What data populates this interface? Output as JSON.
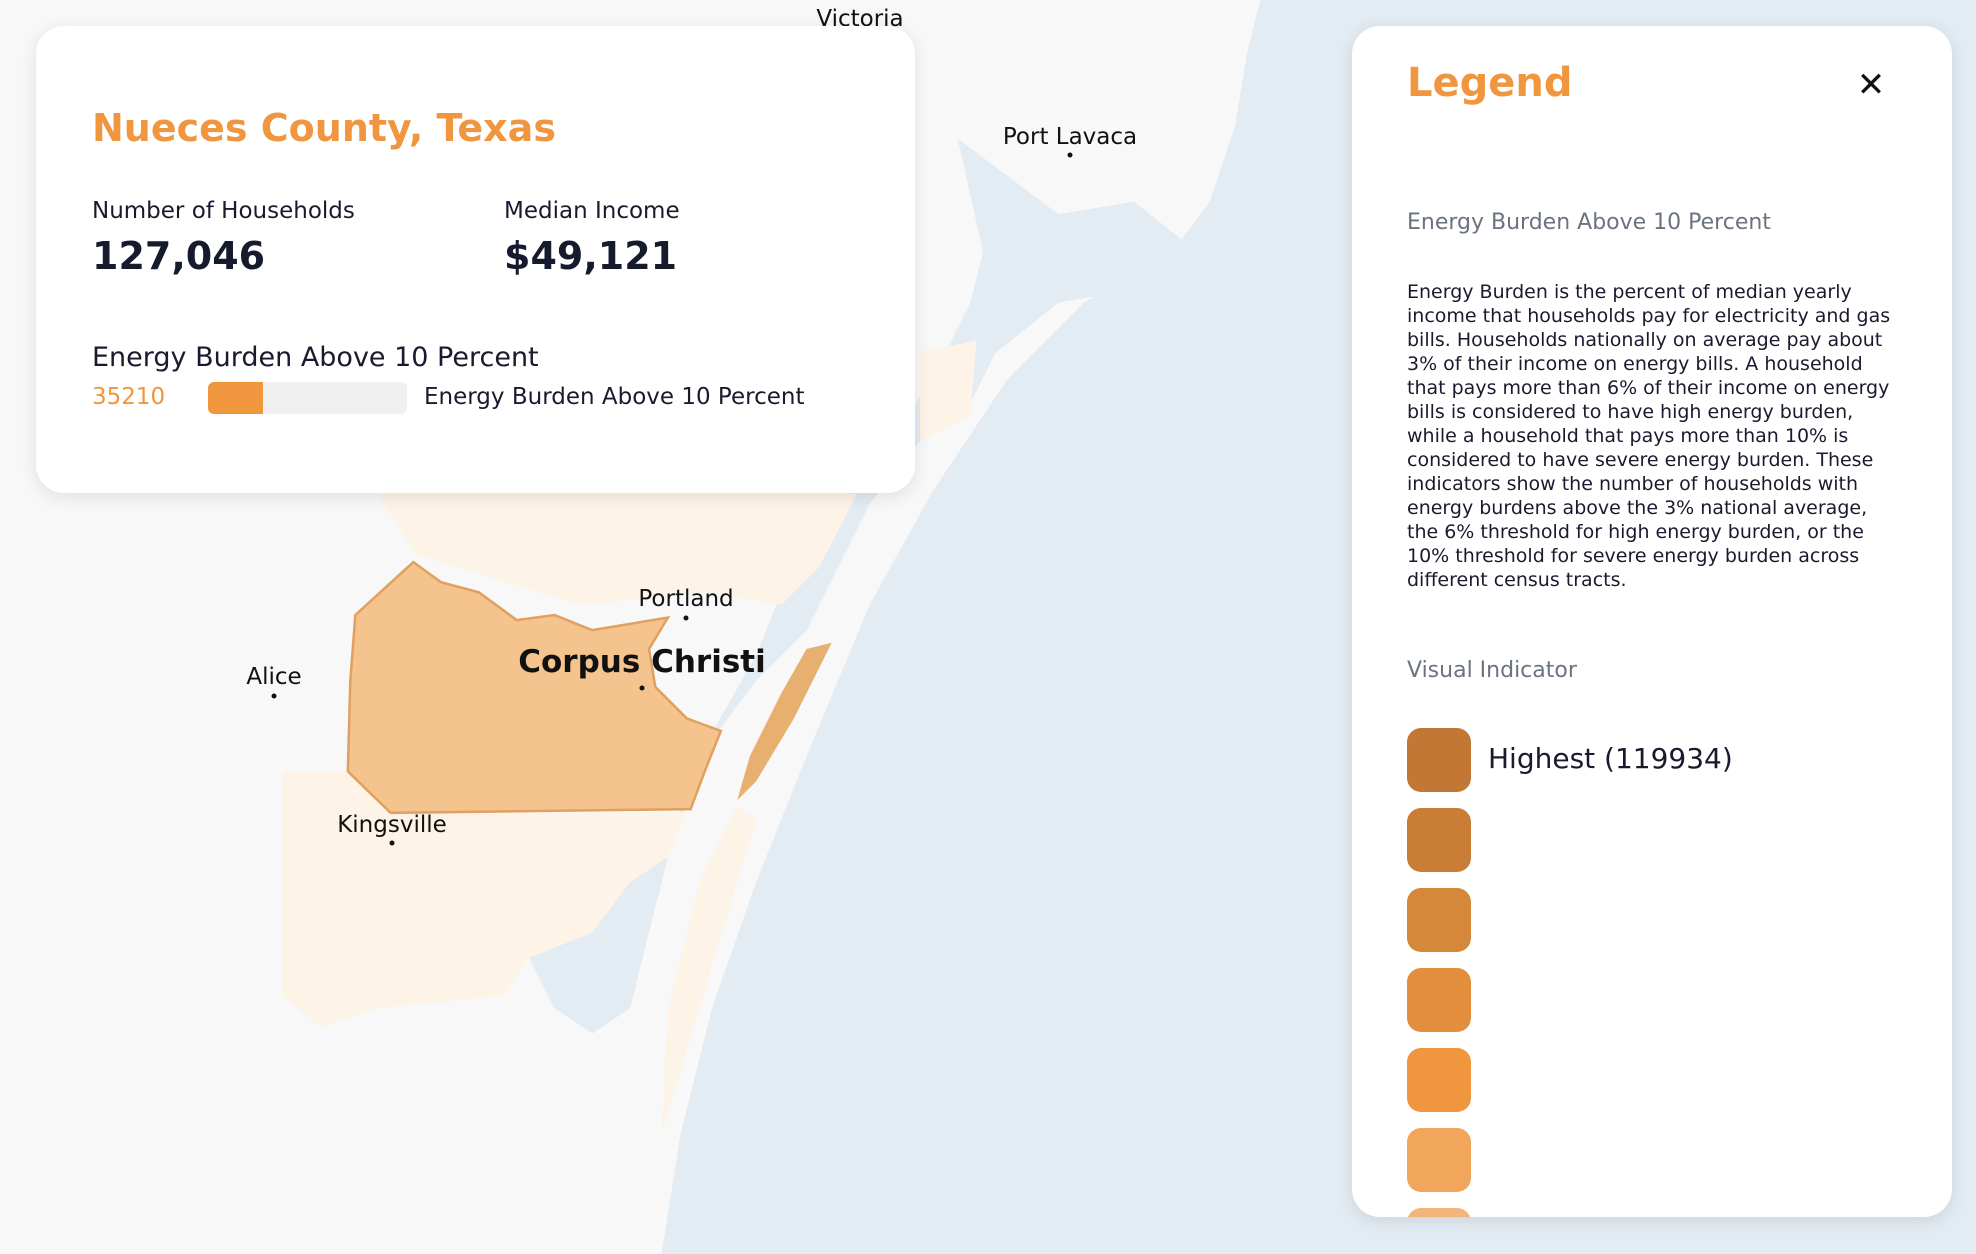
{
  "map": {
    "cities": [
      {
        "name": "Victoria"
      },
      {
        "name": "Port Lavaca"
      },
      {
        "name": "Portland"
      },
      {
        "name": "Corpus Christi"
      },
      {
        "name": "Alice"
      },
      {
        "name": "Kingsville"
      }
    ],
    "colors": {
      "land": "#f8f8f8",
      "water": "#e3ebf3",
      "selected_county": "#f5c48e",
      "county_light": "#fdf3e7"
    }
  },
  "info": {
    "title": "Nueces County, Texas",
    "households_label": "Number of Households",
    "households_value": "127,046",
    "income_label": "Median Income",
    "income_value": "$49,121",
    "section_title": "Energy Burden Above 10 Percent",
    "metric_value": "35210",
    "metric_fraction": 0.277,
    "metric_label": "Energy Burden Above 10 Percent"
  },
  "legend": {
    "title": "Legend",
    "close_icon": "close-x-icon",
    "subtitle": "Energy Burden Above 10 Percent",
    "description": "Energy Burden is the percent of median yearly income that households pay for electricity and gas bills. Households nationally on average pay about 3% of their income on energy bills. A household that pays more than 6% of their income on energy bills is considered to have high energy burden, while a household that pays more than 10% is considered to have severe energy burden. These indicators show the number of households with energy burdens above the 3% national average, the 6% threshold for high energy burden, or the 10% threshold for severe energy burden across different census tracts.",
    "visual_indicator_label": "Visual Indicator",
    "scale": [
      {
        "color": "#c27834",
        "label": "Highest (119934)"
      },
      {
        "color": "#c97d37",
        "label": ""
      },
      {
        "color": "#d5873a",
        "label": ""
      },
      {
        "color": "#e28e3d",
        "label": ""
      },
      {
        "color": "#f0963f",
        "label": ""
      },
      {
        "color": "#f2a65b",
        "label": ""
      },
      {
        "color": "#f4b57a",
        "label": ""
      }
    ]
  }
}
